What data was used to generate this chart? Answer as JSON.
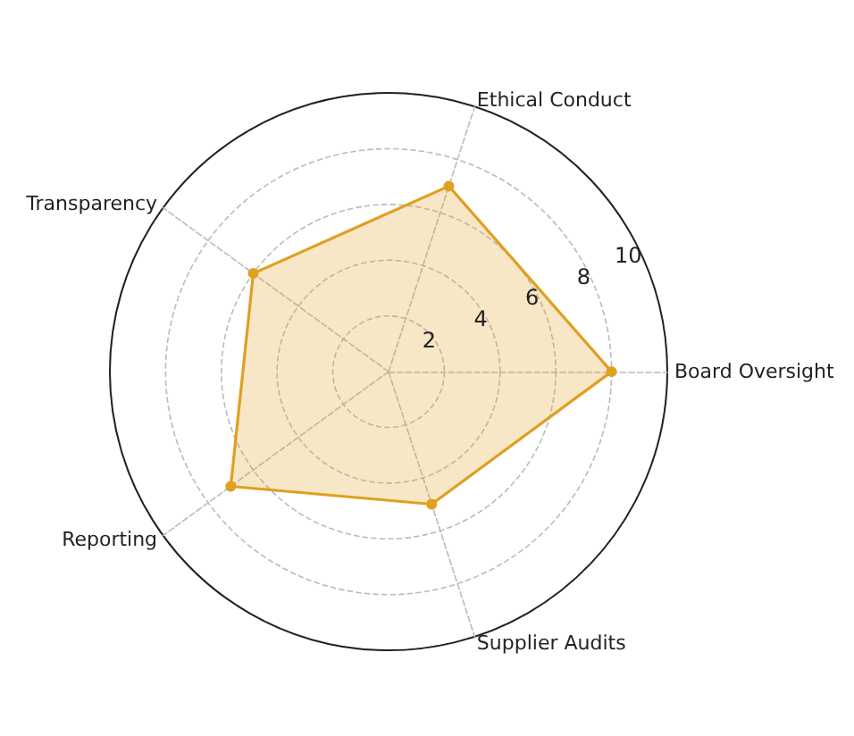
{
  "chart_data": {
    "type": "radar",
    "categories": [
      "Ethical Conduct",
      "Board Oversight",
      "Supplier Audits",
      "Reporting",
      "Transparency"
    ],
    "series": [
      {
        "color": "#e0a020",
        "values": [
          7.0,
          8.0,
          5.0,
          7.0,
          6.0
        ]
      }
    ],
    "ylim": [
      0,
      10
    ],
    "yticks": [
      2,
      4,
      6,
      8,
      10
    ],
    "grid": true,
    "marker": "circle",
    "line_style": "solid"
  }
}
